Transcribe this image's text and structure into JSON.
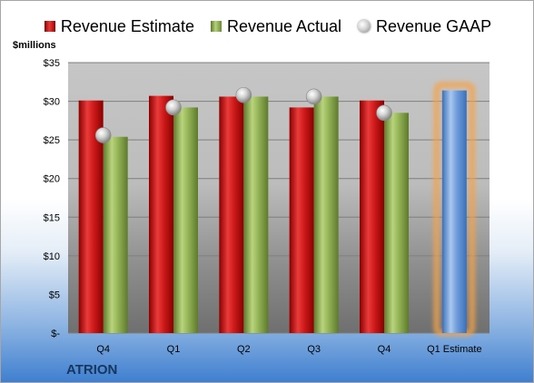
{
  "legend": {
    "estimate": "Revenue Estimate",
    "actual": "Revenue Actual",
    "gaap": "Revenue GAAP"
  },
  "unit_label": "$millions",
  "company": "ATRION",
  "colors": {
    "estimate": "#c00000",
    "actual": "#9bbb59",
    "gaap": "#c0c0c0",
    "forecast": "#5b8fd6",
    "forecast_glow": "#f5a34a"
  },
  "chart_data": {
    "type": "bar",
    "categories": [
      "Q4",
      "Q1",
      "Q2",
      "Q3",
      "Q4",
      "Q1 Estimate"
    ],
    "series": [
      {
        "name": "Revenue Estimate",
        "values": [
          30.1,
          30.7,
          30.6,
          29.2,
          30.1,
          null
        ]
      },
      {
        "name": "Revenue Actual",
        "values": [
          25.4,
          29.2,
          30.6,
          30.6,
          28.5,
          null
        ]
      },
      {
        "name": "Revenue GAAP",
        "values": [
          25.6,
          29.2,
          30.8,
          30.6,
          28.5,
          null
        ]
      },
      {
        "name": "",
        "values": [
          null,
          null,
          null,
          null,
          null,
          31.4
        ]
      }
    ],
    "ylim": [
      0,
      35
    ],
    "yticks": [
      0,
      5,
      10,
      15,
      20,
      25,
      30,
      35
    ],
    "ytick_labels": [
      "$-",
      "$5",
      "$10",
      "$15",
      "$20",
      "$25",
      "$30",
      "$35"
    ],
    "ylabel": "$millions",
    "grid": true
  }
}
